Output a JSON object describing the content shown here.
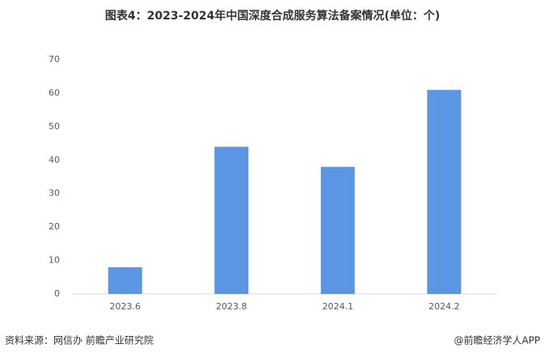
{
  "chart_data": {
    "type": "bar",
    "title": "图表4：2023-2024年中国深度合成服务算法备案情况(单位：个)",
    "categories": [
      "2023.6",
      "2023.8",
      "2024.1",
      "2024.2"
    ],
    "values": [
      8,
      44,
      38,
      61
    ],
    "color": "#5b96e5",
    "ylim": [
      0,
      70
    ],
    "yticks": [
      0,
      10,
      20,
      30,
      40,
      50,
      60,
      70
    ],
    "grid": false,
    "source": "资料来源：网信办 前瞻产业研究院",
    "credit": "@前瞻经济学人APP"
  }
}
